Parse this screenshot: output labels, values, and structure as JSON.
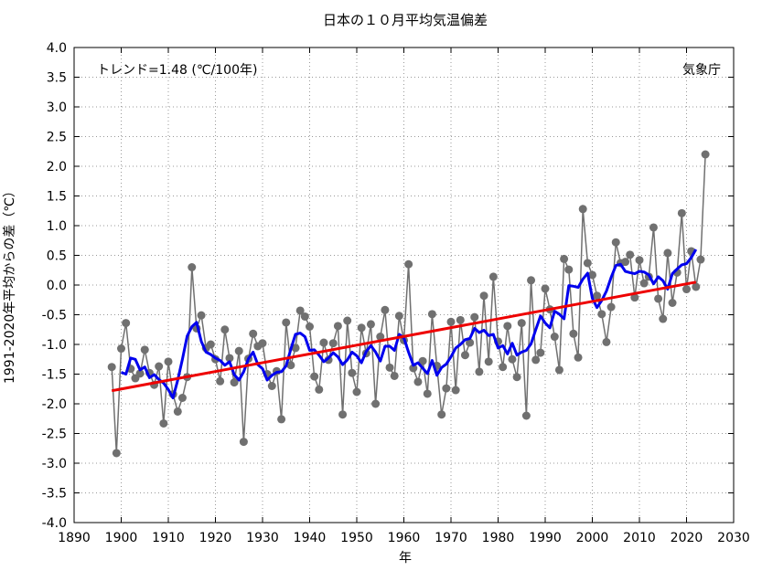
{
  "chart_data": {
    "type": "line",
    "title": "日本の１０月平均気温偏差",
    "xlabel": "年",
    "ylabel": "1991-2020年平均からの差（℃）",
    "xlim": [
      1890,
      2030
    ],
    "ylim": [
      -4.0,
      4.0
    ],
    "x_ticks": [
      1890,
      1900,
      1910,
      1920,
      1930,
      1940,
      1950,
      1960,
      1970,
      1980,
      1990,
      2000,
      2010,
      2020,
      2030
    ],
    "y_ticks": [
      -4.0,
      -3.5,
      -3.0,
      -2.5,
      -2.0,
      -1.5,
      -1.0,
      -0.5,
      0.0,
      0.5,
      1.0,
      1.5,
      2.0,
      2.5,
      3.0,
      3.5,
      4.0
    ],
    "y_tick_labels": [
      "-4.0",
      "-3.5",
      "-3.0",
      "-2.5",
      "-2.0",
      "-1.5",
      "-1.0",
      "-0.5",
      "0.0",
      "0.5",
      "1.0",
      "1.5",
      "2.0",
      "2.5",
      "3.0",
      "3.5",
      "4.0"
    ],
    "grid": "dotted",
    "annotations": {
      "trend": "トレンド=1.48 (℃/100年)",
      "source": "気象庁"
    },
    "series": [
      {
        "color": "#707070",
        "marker_color": "#707070",
        "years": [
          1898,
          1899,
          1900,
          1901,
          1902,
          1903,
          1904,
          1905,
          1906,
          1907,
          1908,
          1909,
          1910,
          1911,
          1912,
          1913,
          1914,
          1915,
          1916,
          1917,
          1918,
          1919,
          1920,
          1921,
          1922,
          1923,
          1924,
          1925,
          1926,
          1927,
          1928,
          1929,
          1930,
          1931,
          1932,
          1933,
          1934,
          1935,
          1936,
          1937,
          1938,
          1939,
          1940,
          1941,
          1942,
          1943,
          1944,
          1945,
          1946,
          1947,
          1948,
          1949,
          1950,
          1951,
          1952,
          1953,
          1954,
          1955,
          1956,
          1957,
          1958,
          1959,
          1960,
          1961,
          1962,
          1963,
          1964,
          1965,
          1966,
          1967,
          1968,
          1969,
          1970,
          1971,
          1972,
          1973,
          1974,
          1975,
          1976,
          1977,
          1978,
          1979,
          1980,
          1981,
          1982,
          1983,
          1984,
          1985,
          1986,
          1987,
          1988,
          1989,
          1990,
          1991,
          1992,
          1993,
          1994,
          1995,
          1996,
          1997,
          1998,
          1999,
          2000,
          2001,
          2002,
          2003,
          2004,
          2005,
          2006,
          2007,
          2008,
          2009,
          2010,
          2011,
          2012,
          2013,
          2014,
          2015,
          2016,
          2017,
          2018,
          2019,
          2020,
          2021,
          2022,
          2023,
          2024
        ],
        "values": [
          -1.38,
          -2.83,
          -1.07,
          -0.64,
          -1.41,
          -1.57,
          -1.49,
          -1.09,
          -1.48,
          -1.68,
          -1.37,
          -2.33,
          -1.29,
          -1.84,
          -2.13,
          -1.9,
          -1.55,
          0.3,
          -0.73,
          -0.51,
          -1.06,
          -1.0,
          -1.25,
          -1.62,
          -0.75,
          -1.23,
          -1.64,
          -1.11,
          -2.64,
          -1.24,
          -0.82,
          -1.03,
          -0.98,
          -1.5,
          -1.7,
          -1.45,
          -2.26,
          -0.63,
          -1.35,
          -1.06,
          -0.43,
          -0.53,
          -0.7,
          -1.54,
          -1.76,
          -0.97,
          -1.26,
          -0.98,
          -0.69,
          -2.18,
          -0.6,
          -1.48,
          -1.8,
          -0.72,
          -1.15,
          -0.66,
          -2.0,
          -0.87,
          -0.42,
          -1.39,
          -1.53,
          -0.52,
          -0.93,
          0.35,
          -1.4,
          -1.63,
          -1.28,
          -1.83,
          -0.49,
          -1.36,
          -2.18,
          -1.74,
          -0.62,
          -1.77,
          -0.59,
          -1.18,
          -0.97,
          -0.54,
          -1.46,
          -0.18,
          -1.29,
          0.14,
          -0.95,
          -1.38,
          -0.69,
          -1.25,
          -1.55,
          -0.64,
          -2.2,
          0.08,
          -1.26,
          -1.14,
          -0.06,
          -0.41,
          -0.87,
          -1.43,
          0.44,
          0.26,
          -0.82,
          -1.22,
          1.28,
          0.37,
          0.17,
          -0.18,
          -0.49,
          -0.96,
          -0.37,
          0.72,
          0.37,
          0.39,
          0.51,
          -0.21,
          0.42,
          0.03,
          0.14,
          0.97,
          -0.23,
          -0.57,
          0.54,
          -0.3,
          0.21,
          1.21,
          -0.07,
          0.57,
          -0.03,
          0.43,
          2.2
        ]
      },
      {
        "color": "#0000ee",
        "years": [
          1900,
          1901,
          1902,
          1903,
          1904,
          1905,
          1906,
          1907,
          1908,
          1909,
          1910,
          1911,
          1912,
          1913,
          1914,
          1915,
          1916,
          1917,
          1918,
          1919,
          1920,
          1921,
          1922,
          1923,
          1924,
          1925,
          1926,
          1927,
          1928,
          1929,
          1930,
          1931,
          1932,
          1933,
          1934,
          1935,
          1936,
          1937,
          1938,
          1939,
          1940,
          1941,
          1942,
          1943,
          1944,
          1945,
          1946,
          1947,
          1948,
          1949,
          1950,
          1951,
          1952,
          1953,
          1954,
          1955,
          1956,
          1957,
          1958,
          1959,
          1960,
          1961,
          1962,
          1963,
          1964,
          1965,
          1966,
          1967,
          1968,
          1969,
          1970,
          1971,
          1972,
          1973,
          1974,
          1975,
          1976,
          1977,
          1978,
          1979,
          1980,
          1981,
          1982,
          1983,
          1984,
          1985,
          1986,
          1987,
          1988,
          1989,
          1990,
          1991,
          1992,
          1993,
          1994,
          1995,
          1996,
          1997,
          1998,
          1999,
          2000,
          2001,
          2002,
          2003,
          2004,
          2005,
          2006,
          2007,
          2008,
          2009,
          2010,
          2011,
          2012,
          2013,
          2014,
          2015,
          2016,
          2017,
          2018,
          2019,
          2020,
          2021,
          2022
        ],
        "values": [
          -1.47,
          -1.5,
          -1.23,
          -1.25,
          -1.43,
          -1.38,
          -1.56,
          -1.51,
          -1.59,
          -1.65,
          -1.76,
          -1.9,
          -1.6,
          -1.25,
          -0.86,
          -0.7,
          -0.63,
          -0.95,
          -1.13,
          -1.17,
          -1.23,
          -1.27,
          -1.35,
          -1.29,
          -1.51,
          -1.6,
          -1.46,
          -1.24,
          -1.13,
          -1.34,
          -1.41,
          -1.6,
          -1.52,
          -1.47,
          -1.46,
          -1.36,
          -1.08,
          -0.83,
          -0.81,
          -0.87,
          -1.1,
          -1.09,
          -1.18,
          -1.29,
          -1.23,
          -1.14,
          -1.21,
          -1.34,
          -1.26,
          -1.13,
          -1.19,
          -1.31,
          -1.12,
          -1.02,
          -1.13,
          -1.28,
          -1.03,
          -1.03,
          -1.1,
          -0.83,
          -0.89,
          -1.13,
          -1.35,
          -1.31,
          -1.4,
          -1.49,
          -1.27,
          -1.52,
          -1.39,
          -1.33,
          -1.21,
          -1.06,
          -1.0,
          -0.92,
          -0.9,
          -0.73,
          -0.8,
          -0.76,
          -0.85,
          -0.83,
          -1.06,
          -1.02,
          -1.16,
          -0.98,
          -1.18,
          -1.13,
          -1.1,
          -0.99,
          -0.75,
          -0.52,
          -0.64,
          -0.72,
          -0.44,
          -0.49,
          -0.57,
          -0.01,
          -0.02,
          -0.04,
          0.1,
          0.2,
          -0.22,
          -0.38,
          -0.26,
          -0.1,
          0.13,
          0.33,
          0.35,
          0.23,
          0.21,
          0.19,
          0.23,
          0.22,
          0.17,
          0.02,
          0.14,
          0.07,
          -0.07,
          0.19,
          0.27,
          0.34,
          0.36,
          0.46,
          0.6
        ]
      },
      {
        "color": "#ee0000",
        "years": [
          1898,
          2022
        ],
        "values": [
          -1.78,
          0.05
        ]
      }
    ]
  }
}
